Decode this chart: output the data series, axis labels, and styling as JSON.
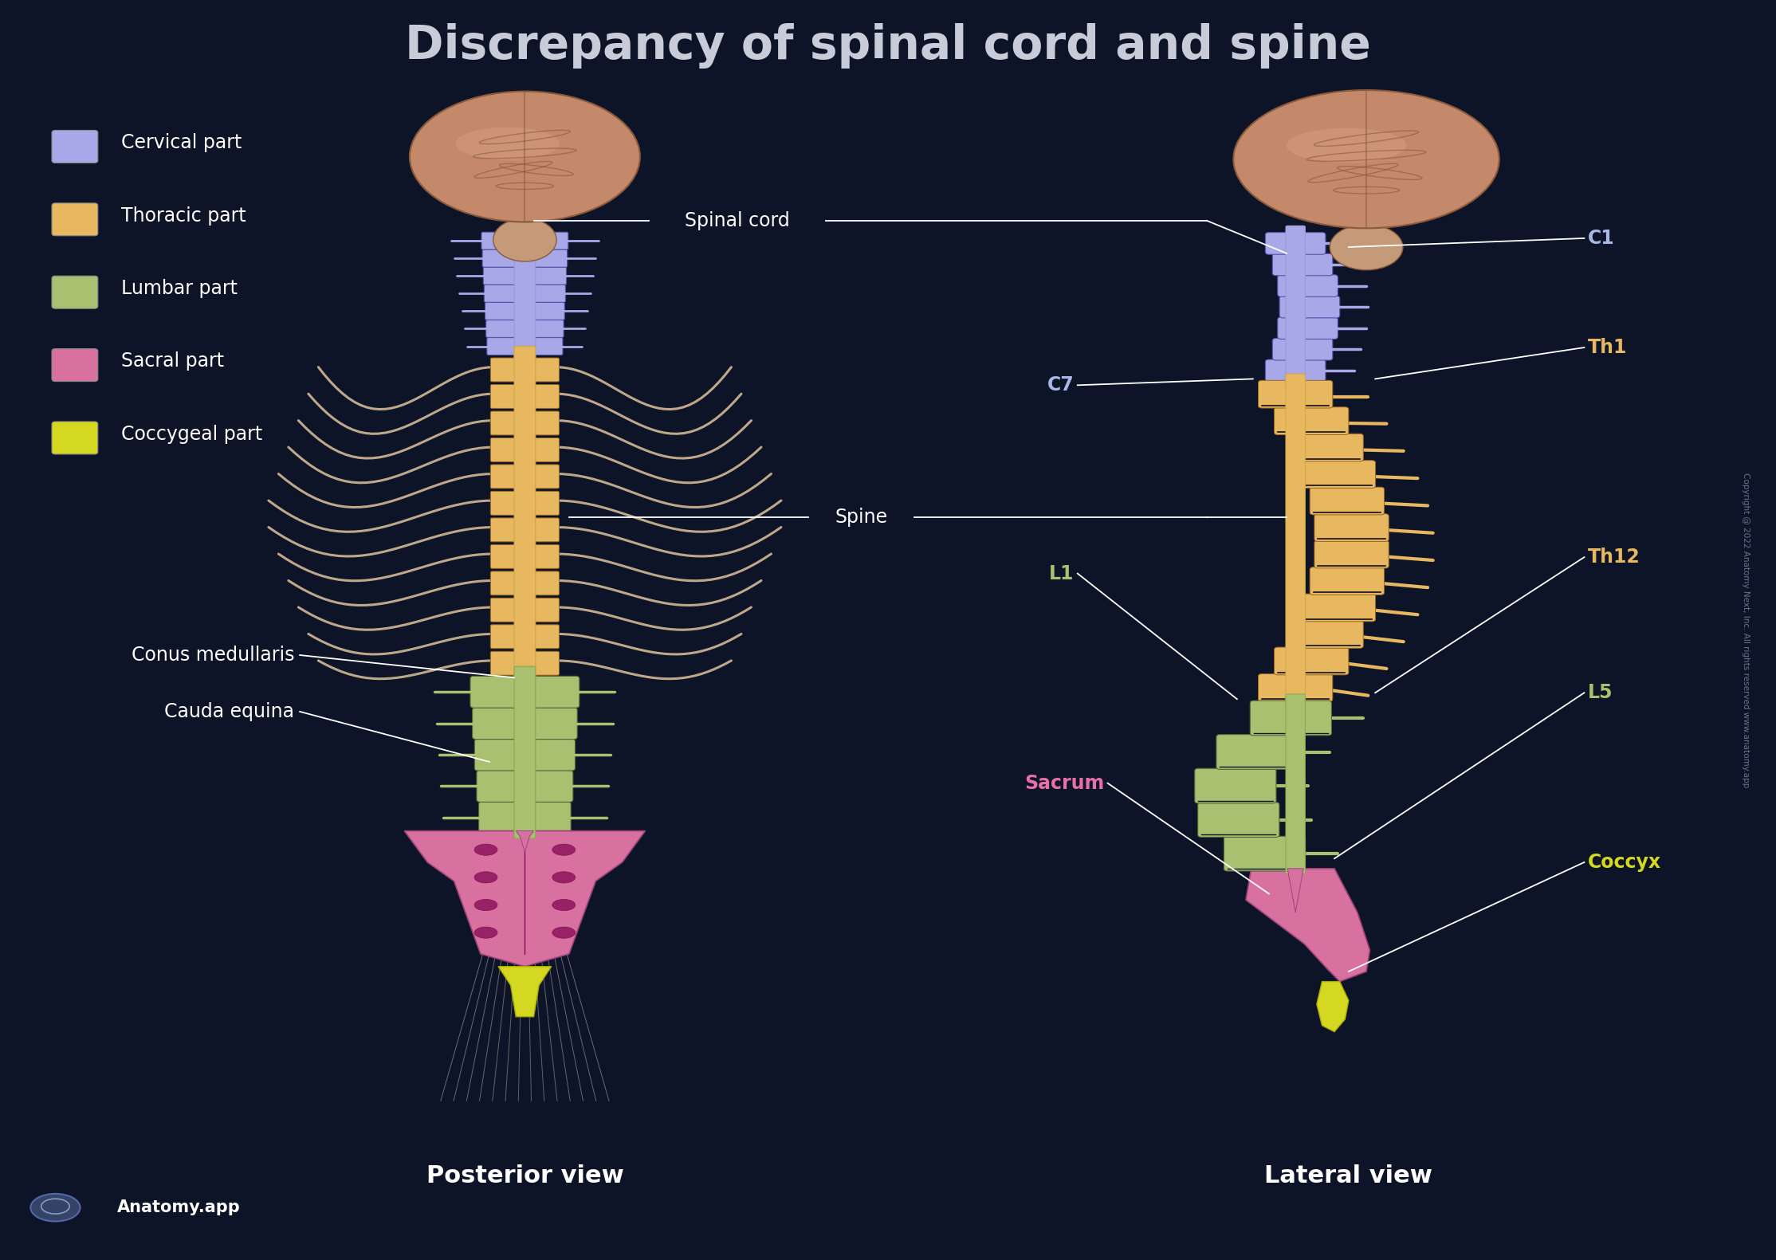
{
  "title": "Discrepancy of spinal cord and spine",
  "background_color": "#0d1428",
  "title_color": "#c8ccd8",
  "title_fontsize": 42,
  "legend_items": [
    {
      "label": "Cervical part",
      "color": "#a8a8e8"
    },
    {
      "label": "Thoracic part",
      "color": "#e8b860"
    },
    {
      "label": "Lumbar part",
      "color": "#a8c070"
    },
    {
      "label": "Sacral part",
      "color": "#d870a0"
    },
    {
      "label": "Coccygeal part",
      "color": "#d4d820"
    }
  ],
  "posterior_view_label": "Posterior view",
  "lateral_view_label": "Lateral view",
  "brain_color": "#c4896a",
  "brain_dark": "#8a5a3a",
  "brain_mid": "#b87850",
  "rib_color": "#d4b896",
  "nerve_color": "#c8c0b0",
  "watermark": "Copyright @ 2022 Anatomy Next, Inc. All rights reserved www.anatomy.app"
}
